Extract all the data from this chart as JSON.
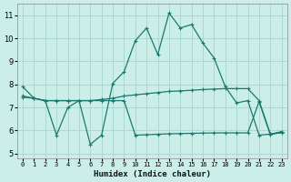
{
  "xlabel": "Humidex (Indice chaleur)",
  "bg_color": "#cceee8",
  "grid_color": "#aad8d2",
  "line_color": "#1a7a6e",
  "xlim": [
    -0.5,
    23.5
  ],
  "ylim": [
    4.8,
    11.5
  ],
  "xticks": [
    0,
    1,
    2,
    3,
    4,
    5,
    6,
    7,
    8,
    9,
    10,
    11,
    12,
    13,
    14,
    15,
    16,
    17,
    18,
    19,
    20,
    21,
    22,
    23
  ],
  "yticks": [
    5,
    6,
    7,
    8,
    9,
    10,
    11
  ],
  "series1_y": [
    7.9,
    7.4,
    7.3,
    5.8,
    7.0,
    7.3,
    5.4,
    5.8,
    8.05,
    8.55,
    9.9,
    10.45,
    9.3,
    11.1,
    10.45,
    10.6,
    9.8,
    9.15,
    7.9,
    7.2,
    7.3,
    5.8,
    5.85,
    5.9
  ],
  "series2_y": [
    7.5,
    7.4,
    7.3,
    7.3,
    7.3,
    7.3,
    7.3,
    7.35,
    7.4,
    7.5,
    7.55,
    7.6,
    7.65,
    7.7,
    7.72,
    7.75,
    7.78,
    7.8,
    7.82,
    7.82,
    7.82,
    7.3,
    5.85,
    5.95
  ],
  "series3_y": [
    7.45,
    7.4,
    7.3,
    7.3,
    7.3,
    7.3,
    7.3,
    7.3,
    7.3,
    7.3,
    5.8,
    5.82,
    5.84,
    5.86,
    5.87,
    5.88,
    5.89,
    5.9,
    5.9,
    5.9,
    5.9,
    7.25,
    5.82,
    5.95
  ]
}
